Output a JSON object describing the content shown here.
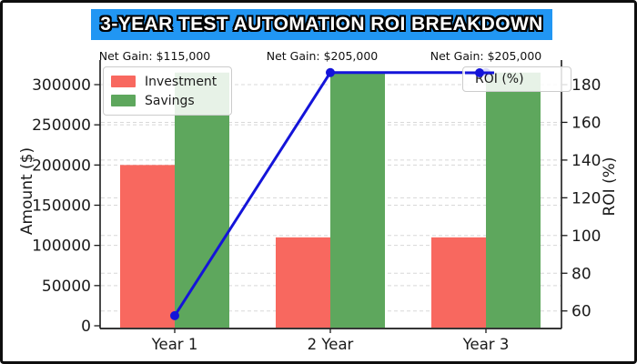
{
  "title": "3-YEAR TEST AUTOMATION ROI BREAKDOWN",
  "colors": {
    "banner": "#2196f3",
    "grid": "#d8d8d8",
    "axis": "#1a1a1a",
    "text": "#1a1a1a"
  },
  "chart_data": {
    "type": "bar+line",
    "categories": [
      "Year 1",
      "2 Year",
      "Year 3"
    ],
    "series": [
      {
        "name": "Investment",
        "type": "bar",
        "axis": "left",
        "values": [
          200000,
          110000,
          110000
        ],
        "color": "#f8685f"
      },
      {
        "name": "Savings",
        "type": "bar",
        "axis": "left",
        "values": [
          315000,
          315000,
          315000
        ],
        "color": "#5ea75d"
      },
      {
        "name": "ROI (%)",
        "type": "line",
        "axis": "right",
        "values": [
          57.5,
          186.4,
          186.4
        ],
        "color": "#1414d9"
      }
    ],
    "annotations": [
      {
        "text": "Net Gain: $115,000"
      },
      {
        "text": "Net Gain: $205,000"
      },
      {
        "text": "Net Gain: $205,000"
      }
    ],
    "left_axis": {
      "label": "Amount ($)",
      "ticks": [
        0,
        50000,
        100000,
        150000,
        200000,
        250000,
        300000
      ]
    },
    "right_axis": {
      "label": "ROI (%)",
      "ticks": [
        60,
        80,
        100,
        120,
        140,
        160,
        180
      ]
    },
    "grid": true,
    "legend_left_entries": [
      "Investment",
      "Savings"
    ],
    "legend_right_entries": [
      "ROI (%)"
    ]
  }
}
